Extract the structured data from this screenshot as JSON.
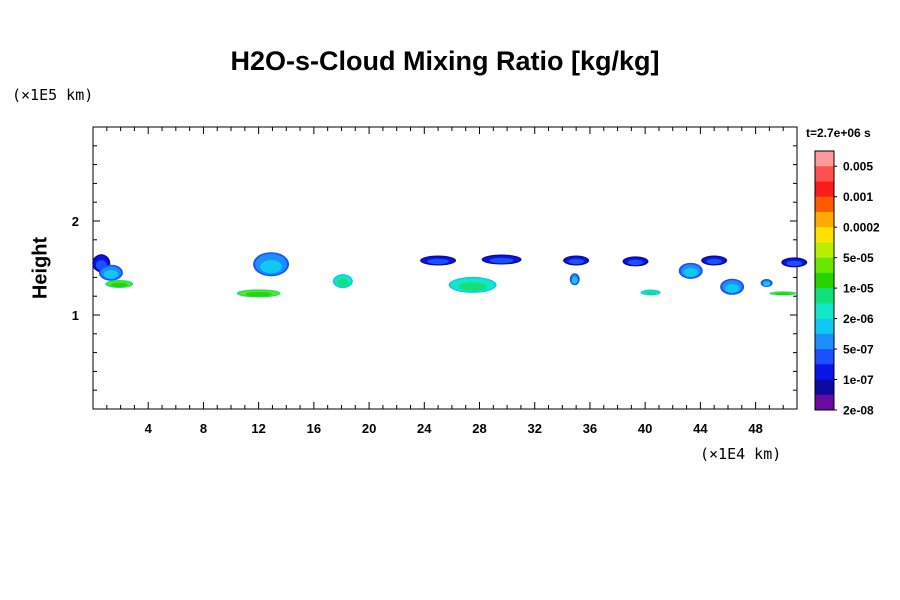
{
  "chart_data": {
    "type": "heatmap",
    "title": "H2O-s-Cloud Mixing Ratio [kg/kg]",
    "ylabel": "Height",
    "y_unit": "(×1E5 km)",
    "x_unit": "(×1E4 km)",
    "time_label": "t=2.7e+06 s",
    "xlim": [
      0,
      51
    ],
    "ylim": [
      0,
      3
    ],
    "x_ticks": [
      4,
      8,
      12,
      16,
      20,
      24,
      28,
      32,
      36,
      40,
      44,
      48
    ],
    "y_ticks": [
      1,
      2
    ],
    "colorbar": {
      "labels": [
        "0.005",
        "0.001",
        "0.0002",
        "5e-05",
        "1e-05",
        "2e-06",
        "5e-07",
        "1e-07",
        "2e-08"
      ],
      "colors": [
        "#ff9a9a",
        "#ff5050",
        "#ff1a1a",
        "#ff5a00",
        "#ffaa00",
        "#ffe000",
        "#b8f000",
        "#66e600",
        "#26d400",
        "#14e07a",
        "#10e8c8",
        "#10c8f0",
        "#1a90ff",
        "#1a50ff",
        "#0a14e6",
        "#0a0aa0",
        "#6a0aa0"
      ]
    },
    "cloud_patches": [
      {
        "x": 0.6,
        "y": 1.55,
        "level": "1e-07"
      },
      {
        "x": 1.3,
        "y": 1.45,
        "level": "5e-07"
      },
      {
        "x": 1.9,
        "y": 1.33,
        "level": "1e-05"
      },
      {
        "x": 12.9,
        "y": 1.54,
        "level": "5e-07"
      },
      {
        "x": 12.0,
        "y": 1.23,
        "level": "1e-05"
      },
      {
        "x": 18.1,
        "y": 1.36,
        "level": "2e-06"
      },
      {
        "x": 25.0,
        "y": 1.58,
        "level": "1e-07"
      },
      {
        "x": 27.5,
        "y": 1.32,
        "level": "2e-06"
      },
      {
        "x": 29.6,
        "y": 1.59,
        "level": "1e-07"
      },
      {
        "x": 35.0,
        "y": 1.58,
        "level": "1e-07"
      },
      {
        "x": 34.9,
        "y": 1.38,
        "level": "5e-07"
      },
      {
        "x": 39.3,
        "y": 1.57,
        "level": "1e-07"
      },
      {
        "x": 40.4,
        "y": 1.24,
        "level": "2e-06"
      },
      {
        "x": 43.3,
        "y": 1.47,
        "level": "5e-07"
      },
      {
        "x": 45.0,
        "y": 1.58,
        "level": "1e-07"
      },
      {
        "x": 46.3,
        "y": 1.3,
        "level": "5e-07"
      },
      {
        "x": 48.8,
        "y": 1.34,
        "level": "5e-07"
      },
      {
        "x": 50.0,
        "y": 1.23,
        "level": "1e-05"
      },
      {
        "x": 50.8,
        "y": 1.56,
        "level": "1e-07"
      }
    ]
  }
}
